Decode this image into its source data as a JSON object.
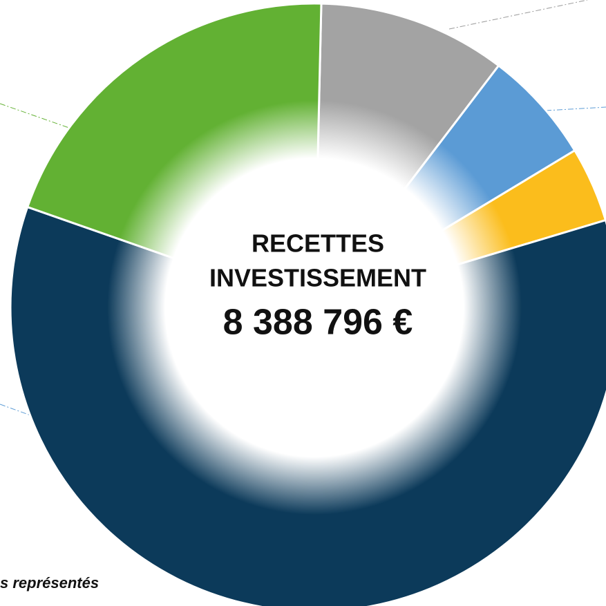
{
  "chart_data": {
    "type": "donut",
    "title": "RECETTES",
    "subtitle": "INVESTISSEMENT",
    "total_label": "8 388 796 €",
    "note": "s représentés",
    "values": [
      10,
      6,
      4,
      60,
      20
    ],
    "colors": [
      "#a3a3a3",
      "#5b9bd5",
      "#fbbd1c",
      "#0c3a5a",
      "#62b133"
    ]
  }
}
